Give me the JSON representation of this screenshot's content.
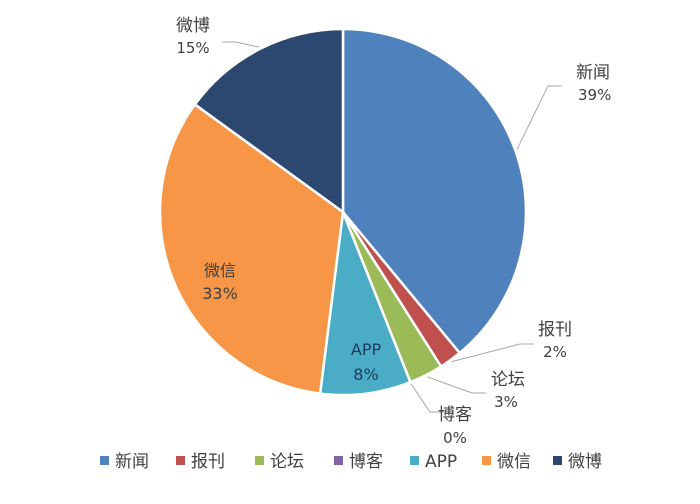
{
  "chart_data": {
    "type": "pie",
    "title": "",
    "slices": [
      {
        "name": "新闻",
        "value": 39,
        "label": "39%",
        "color": "#4f81bd"
      },
      {
        "name": "报刊",
        "value": 2,
        "label": "2%",
        "color": "#c0504d"
      },
      {
        "name": "论坛",
        "value": 3,
        "label": "3%",
        "color": "#9bbb59"
      },
      {
        "name": "博客",
        "value": 0,
        "label": "0%",
        "color": "#8064a2"
      },
      {
        "name": "APP",
        "value": 8,
        "label": "8%",
        "color": "#4bacc6"
      },
      {
        "name": "微信",
        "value": 33,
        "label": "33%",
        "color": "#f79646"
      },
      {
        "name": "微博",
        "value": 15,
        "label": "15%",
        "color": "#2c4770"
      }
    ],
    "legend": {
      "position": "bottom",
      "entries": [
        "新闻",
        "报刊",
        "论坛",
        "博客",
        "APP",
        "微信",
        "微博"
      ]
    }
  }
}
